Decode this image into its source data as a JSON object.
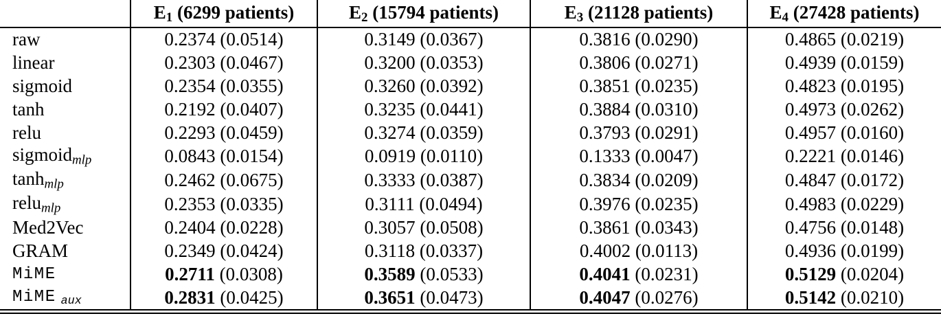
{
  "colors": {
    "background": "#ffffff",
    "text": "#000000",
    "rule": "#000000"
  },
  "table": {
    "header": {
      "corner": "",
      "columns": [
        {
          "name": "E",
          "sub": "1",
          "patients": "(6299 patients)"
        },
        {
          "name": "E",
          "sub": "2",
          "patients": "(15794 patients)"
        },
        {
          "name": "E",
          "sub": "3",
          "patients": "(21128 patients)"
        },
        {
          "name": "E",
          "sub": "4",
          "patients": "(27428 patients)"
        }
      ]
    },
    "rows": [
      {
        "label": "raw",
        "sub": "",
        "mono": false,
        "bold": false,
        "cells": [
          {
            "mean": "0.2374",
            "std": "(0.0514)"
          },
          {
            "mean": "0.3149",
            "std": "(0.0367)"
          },
          {
            "mean": "0.3816",
            "std": "(0.0290)"
          },
          {
            "mean": "0.4865",
            "std": "(0.0219)"
          }
        ]
      },
      {
        "label": "linear",
        "sub": "",
        "mono": false,
        "bold": false,
        "cells": [
          {
            "mean": "0.2303",
            "std": "(0.0467)"
          },
          {
            "mean": "0.3200",
            "std": "(0.0353)"
          },
          {
            "mean": "0.3806",
            "std": "(0.0271)"
          },
          {
            "mean": "0.4939",
            "std": "(0.0159)"
          }
        ]
      },
      {
        "label": "sigmoid",
        "sub": "",
        "mono": false,
        "bold": false,
        "cells": [
          {
            "mean": "0.2354",
            "std": "(0.0355)"
          },
          {
            "mean": "0.3260",
            "std": "(0.0392)"
          },
          {
            "mean": "0.3851",
            "std": "(0.0235)"
          },
          {
            "mean": "0.4823",
            "std": "(0.0195)"
          }
        ]
      },
      {
        "label": "tanh",
        "sub": "",
        "mono": false,
        "bold": false,
        "cells": [
          {
            "mean": "0.2192",
            "std": "(0.0407)"
          },
          {
            "mean": "0.3235",
            "std": "(0.0441)"
          },
          {
            "mean": "0.3884",
            "std": "(0.0310)"
          },
          {
            "mean": "0.4973",
            "std": "(0.0262)"
          }
        ]
      },
      {
        "label": "relu",
        "sub": "",
        "mono": false,
        "bold": false,
        "cells": [
          {
            "mean": "0.2293",
            "std": "(0.0459)"
          },
          {
            "mean": "0.3274",
            "std": "(0.0359)"
          },
          {
            "mean": "0.3793",
            "std": "(0.0291)"
          },
          {
            "mean": "0.4957",
            "std": "(0.0160)"
          }
        ]
      },
      {
        "label": "sigmoid",
        "sub": "mlp",
        "mono": false,
        "bold": false,
        "cells": [
          {
            "mean": "0.0843",
            "std": "(0.0154)"
          },
          {
            "mean": "0.0919",
            "std": "(0.0110)"
          },
          {
            "mean": "0.1333",
            "std": "(0.0047)"
          },
          {
            "mean": "0.2221",
            "std": "(0.0146)"
          }
        ]
      },
      {
        "label": "tanh",
        "sub": "mlp",
        "mono": false,
        "bold": false,
        "cells": [
          {
            "mean": "0.2462",
            "std": "(0.0675)"
          },
          {
            "mean": "0.3333",
            "std": "(0.0387)"
          },
          {
            "mean": "0.3834",
            "std": "(0.0209)"
          },
          {
            "mean": "0.4847",
            "std": "(0.0172)"
          }
        ]
      },
      {
        "label": "relu",
        "sub": "mlp",
        "mono": false,
        "bold": false,
        "cells": [
          {
            "mean": "0.2353",
            "std": "(0.0335)"
          },
          {
            "mean": "0.3111",
            "std": "(0.0494)"
          },
          {
            "mean": "0.3976",
            "std": "(0.0235)"
          },
          {
            "mean": "0.4983",
            "std": "(0.0229)"
          }
        ]
      },
      {
        "label": "Med2Vec",
        "sub": "",
        "mono": false,
        "bold": false,
        "cells": [
          {
            "mean": "0.2404",
            "std": "(0.0228)"
          },
          {
            "mean": "0.3057",
            "std": "(0.0508)"
          },
          {
            "mean": "0.3861",
            "std": "(0.0343)"
          },
          {
            "mean": "0.4756",
            "std": "(0.0148)"
          }
        ]
      },
      {
        "label": "GRAM",
        "sub": "",
        "mono": false,
        "bold": false,
        "cells": [
          {
            "mean": "0.2349",
            "std": "(0.0424)"
          },
          {
            "mean": "0.3118",
            "std": "(0.0337)"
          },
          {
            "mean": "0.4002",
            "std": "(0.0113)"
          },
          {
            "mean": "0.4936",
            "std": "(0.0199)"
          }
        ]
      },
      {
        "label": "MiME",
        "sub": "",
        "mono": true,
        "bold": true,
        "cells": [
          {
            "mean": "0.2711",
            "std": "(0.0308)"
          },
          {
            "mean": "0.3589",
            "std": "(0.0533)"
          },
          {
            "mean": "0.4041",
            "std": "(0.0231)"
          },
          {
            "mean": "0.5129",
            "std": "(0.0204)"
          }
        ]
      },
      {
        "label": "MiME",
        "sub": "aux",
        "mono": true,
        "bold": true,
        "cells": [
          {
            "mean": "0.2831",
            "std": "(0.0425)"
          },
          {
            "mean": "0.3651",
            "std": "(0.0473)"
          },
          {
            "mean": "0.4047",
            "std": "(0.0276)"
          },
          {
            "mean": "0.5142",
            "std": "(0.0210)"
          }
        ]
      }
    ]
  }
}
